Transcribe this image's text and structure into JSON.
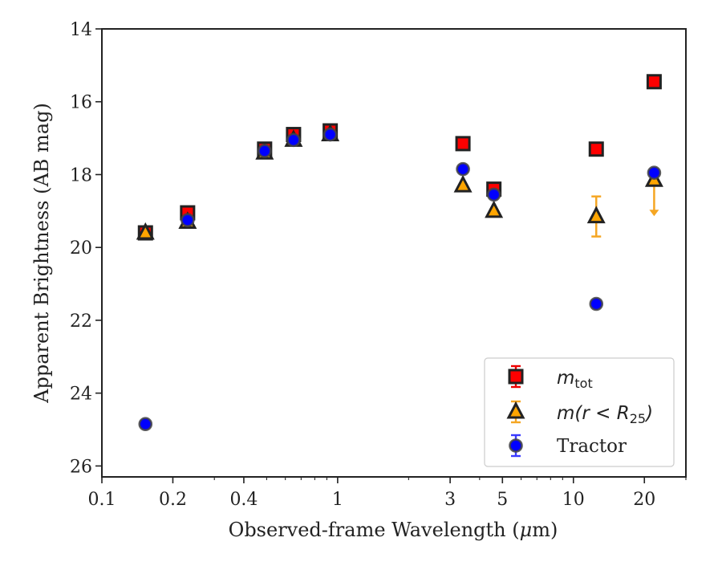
{
  "chart_data": {
    "type": "scatter",
    "title": "",
    "xlabel_main": "Observed-frame Wavelength (",
    "xlabel_unit_mu": "μ",
    "xlabel_unit_rest": "m)",
    "ylabel": "Apparent Brightness (AB mag)",
    "xscale": "log",
    "xlim": [
      0.1,
      30
    ],
    "ylim": [
      26.3,
      14
    ],
    "y_inverted": true,
    "grid": false,
    "legend_position": "lower-right",
    "x_ticks": [
      {
        "value": 0.1,
        "label": "0.1"
      },
      {
        "value": 0.2,
        "label": "0.2"
      },
      {
        "value": 0.4,
        "label": "0.4"
      },
      {
        "value": 1,
        "label": "1"
      },
      {
        "value": 3,
        "label": "3"
      },
      {
        "value": 5,
        "label": "5"
      },
      {
        "value": 10,
        "label": "10"
      },
      {
        "value": 20,
        "label": "20"
      }
    ],
    "y_ticks": [
      {
        "value": 14,
        "label": "14"
      },
      {
        "value": 16,
        "label": "16"
      },
      {
        "value": 18,
        "label": "18"
      },
      {
        "value": 20,
        "label": "20"
      },
      {
        "value": 22,
        "label": "22"
      },
      {
        "value": 24,
        "label": "24"
      },
      {
        "value": 26,
        "label": "26"
      }
    ],
    "series": [
      {
        "key": "mtot",
        "legend_main": "m",
        "legend_sub": "tot",
        "marker": "square",
        "color": "#ff0000",
        "edge_color": "#222222",
        "error_color": "#ee0000",
        "points": [
          {
            "x": 0.153,
            "y": 19.6
          },
          {
            "x": 0.231,
            "y": 19.05
          },
          {
            "x": 0.49,
            "y": 17.3
          },
          {
            "x": 0.65,
            "y": 16.9
          },
          {
            "x": 0.93,
            "y": 16.8
          },
          {
            "x": 3.4,
            "y": 17.15
          },
          {
            "x": 4.6,
            "y": 18.4
          },
          {
            "x": 12.5,
            "y": 17.3
          },
          {
            "x": 22.0,
            "y": 15.45
          }
        ]
      },
      {
        "key": "mr25",
        "legend_main": "m(r < R",
        "legend_sub": "25",
        "legend_tail": ")",
        "marker": "triangle",
        "color": "#ffa500",
        "edge_color": "#222222",
        "error_color": "#f5a623",
        "points": [
          {
            "x": 0.153,
            "y": 19.6
          },
          {
            "x": 0.231,
            "y": 19.3
          },
          {
            "x": 0.49,
            "y": 17.4
          },
          {
            "x": 0.65,
            "y": 17.05
          },
          {
            "x": 0.93,
            "y": 16.9
          },
          {
            "x": 3.4,
            "y": 18.3
          },
          {
            "x": 4.6,
            "y": 19.0
          },
          {
            "x": 12.5,
            "y": 19.15,
            "err": 0.55
          },
          {
            "x": 22.0,
            "y": 18.15,
            "upper_limit": true
          }
        ]
      },
      {
        "key": "tractor",
        "legend_main": "Tractor",
        "marker": "circle",
        "color": "#0000ff",
        "edge_color": "#444444",
        "error_color": "#3a3aff",
        "points": [
          {
            "x": 0.153,
            "y": 24.85
          },
          {
            "x": 0.231,
            "y": 19.25
          },
          {
            "x": 0.49,
            "y": 17.35
          },
          {
            "x": 0.65,
            "y": 17.05
          },
          {
            "x": 0.93,
            "y": 16.9
          },
          {
            "x": 3.4,
            "y": 17.85
          },
          {
            "x": 4.6,
            "y": 18.55
          },
          {
            "x": 12.5,
            "y": 21.55
          },
          {
            "x": 22.0,
            "y": 17.95
          }
        ]
      }
    ]
  }
}
